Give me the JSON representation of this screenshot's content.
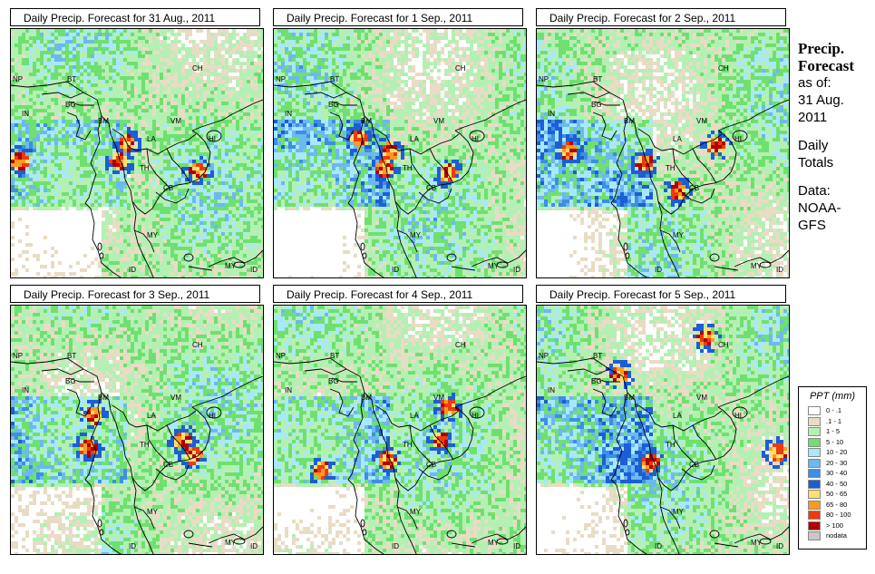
{
  "panels": [
    {
      "title": "Daily Precip. Forecast for  31 Aug., 2011",
      "seed": 11,
      "hot": [
        [
          0.03,
          0.52
        ],
        [
          0.45,
          0.45
        ],
        [
          0.42,
          0.52
        ],
        [
          0.73,
          0.56
        ]
      ]
    },
    {
      "title": "Daily Precip. Forecast for  1 Sep., 2011",
      "seed": 23,
      "hot": [
        [
          0.45,
          0.48
        ],
        [
          0.43,
          0.55
        ],
        [
          0.68,
          0.57
        ],
        [
          0.33,
          0.43
        ]
      ]
    },
    {
      "title": "Daily Precip. Forecast for  2 Sep., 2011",
      "seed": 37,
      "hot": [
        [
          0.12,
          0.48
        ],
        [
          0.42,
          0.53
        ],
        [
          0.55,
          0.64
        ],
        [
          0.7,
          0.46
        ]
      ]
    },
    {
      "title": "Daily Precip. Forecast for  3 Sep., 2011",
      "seed": 41,
      "hot": [
        [
          0.32,
          0.43
        ],
        [
          0.67,
          0.53
        ],
        [
          0.71,
          0.59
        ],
        [
          0.3,
          0.56
        ]
      ]
    },
    {
      "title": "Daily Precip. Forecast for  4 Sep., 2011",
      "seed": 53,
      "hot": [
        [
          0.18,
          0.65
        ],
        [
          0.44,
          0.61
        ],
        [
          0.65,
          0.53
        ],
        [
          0.68,
          0.4
        ]
      ]
    },
    {
      "title": "Daily Precip. Forecast for  5 Sep., 2011",
      "seed": 67,
      "hot": [
        [
          0.66,
          0.12
        ],
        [
          0.94,
          0.58
        ],
        [
          0.44,
          0.62
        ],
        [
          0.32,
          0.27
        ]
      ]
    }
  ],
  "map_labels": [
    "CH",
    "NP",
    "BT",
    "BG",
    "IN",
    "BM",
    "VM",
    "LA",
    "HI",
    "TH",
    "CB",
    "MY",
    "ID",
    "MY",
    "ID"
  ],
  "sidebar": {
    "line1": "Precip.",
    "line2": "Forecast",
    "asof": "as of:",
    "date1": "31 Aug.",
    "date2": "2011",
    "daily1": "Daily",
    "daily2": "Totals",
    "data1": "Data:",
    "data2": "NOAA-",
    "data3": "GFS"
  },
  "legend": {
    "title": "PPT (mm)",
    "classes": [
      {
        "label": "0 - .1",
        "color": "#ffffff"
      },
      {
        "label": ".1 - 1",
        "color": "#e9dcc4"
      },
      {
        "label": "1 - 5",
        "color": "#b4f0b4"
      },
      {
        "label": "5 - 10",
        "color": "#6fe06f"
      },
      {
        "label": "10 - 20",
        "color": "#a8e8ff"
      },
      {
        "label": "20 - 30",
        "color": "#6cb8f0"
      },
      {
        "label": "30 - 40",
        "color": "#3c8ee6"
      },
      {
        "label": "40 - 50",
        "color": "#1c5ed6"
      },
      {
        "label": "50 - 65",
        "color": "#ffe070"
      },
      {
        "label": "65 - 80",
        "color": "#ff9a20"
      },
      {
        "label": "80 - 100",
        "color": "#ee3a10"
      },
      {
        "label": "> 100",
        "color": "#b00000"
      },
      {
        "label": "nodata",
        "color": "#c8c8c8"
      }
    ]
  }
}
